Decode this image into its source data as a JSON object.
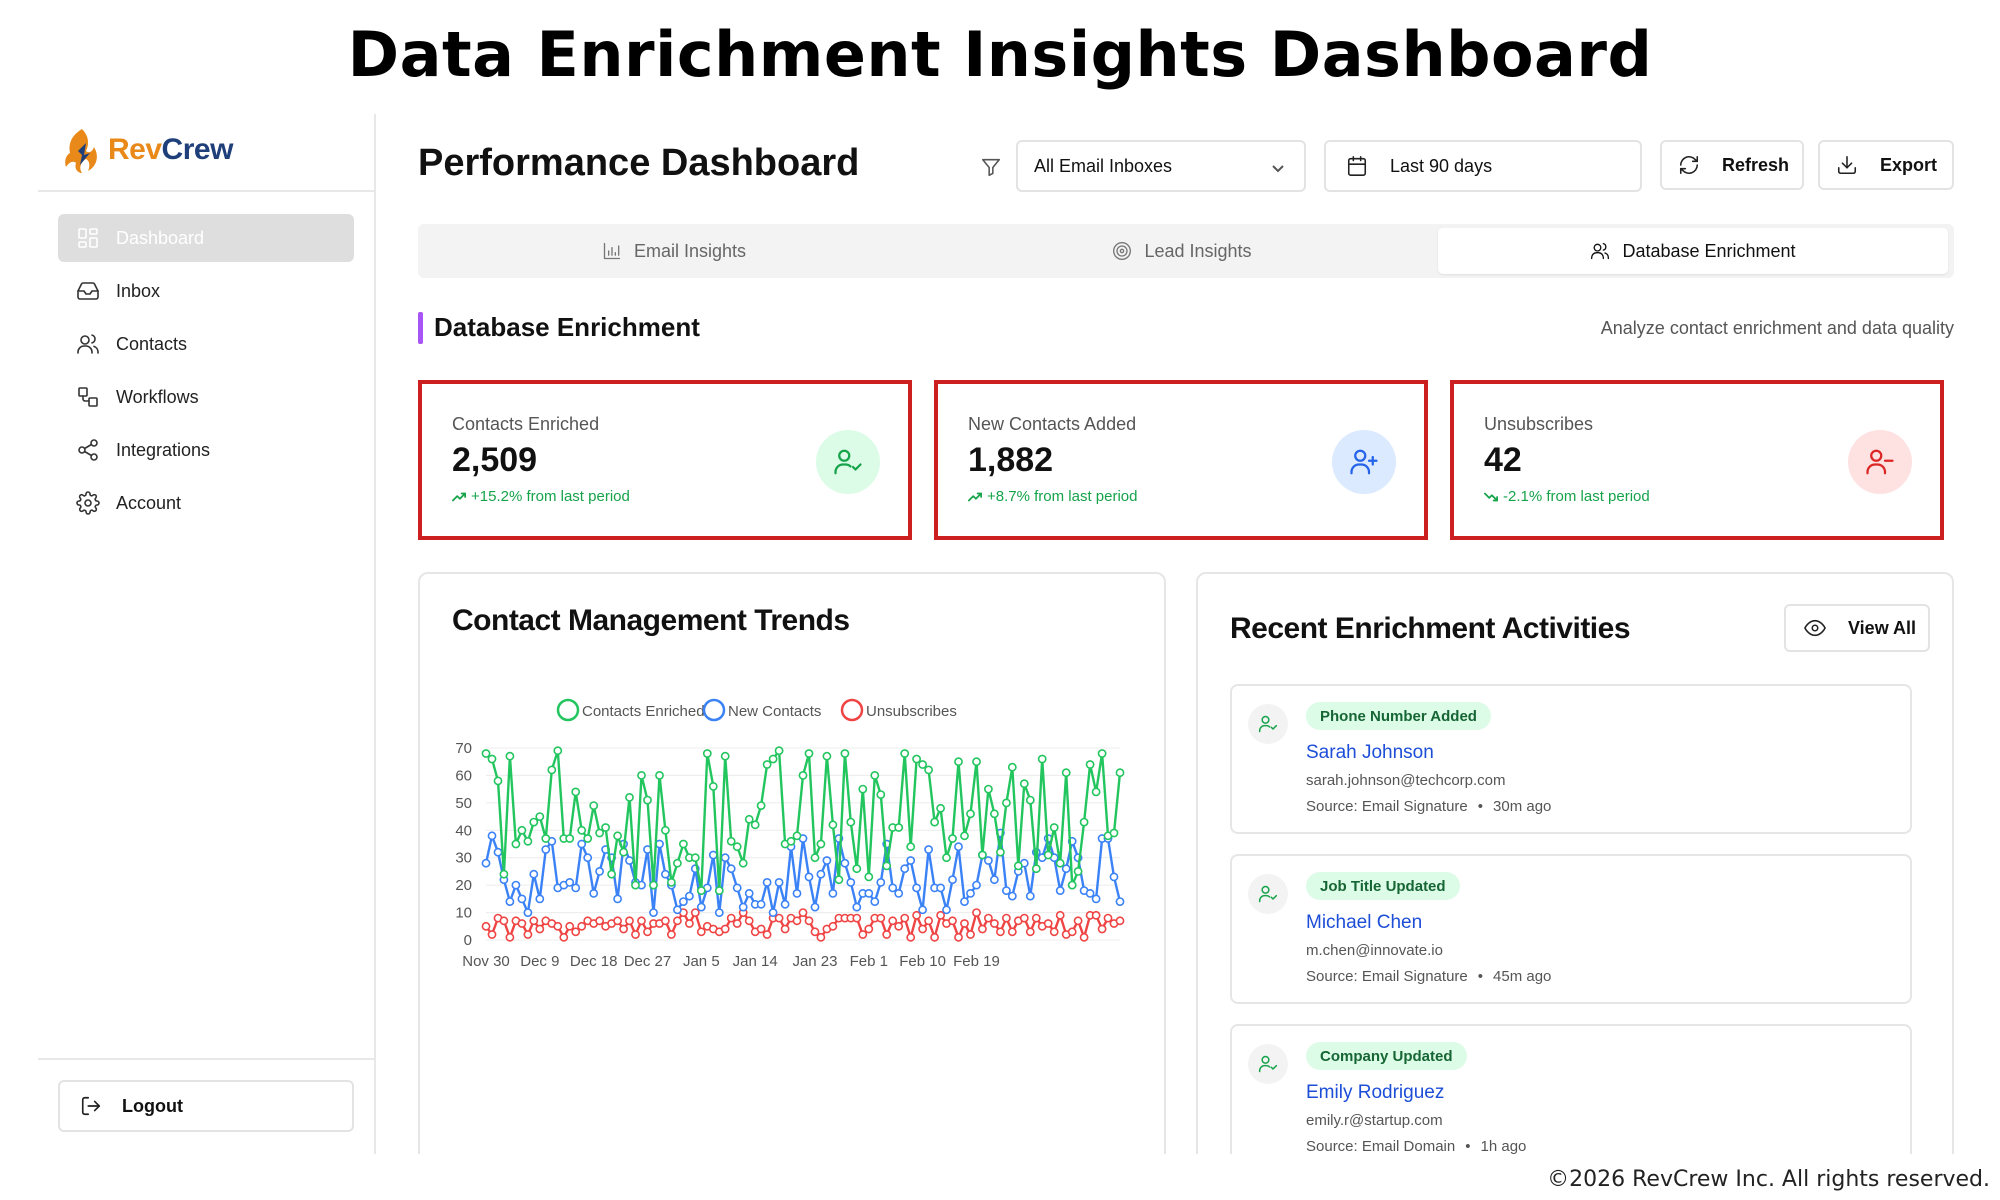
{
  "banner": {
    "title": "Data Enrichment Insights Dashboard",
    "copyright": "©2026 RevCrew Inc. All rights reserved."
  },
  "brand": {
    "name_part1": "Rev",
    "name_part2": "Crew",
    "color_orange": "#e8891a",
    "color_navy": "#1f3f7a"
  },
  "sidebar": {
    "items": [
      {
        "label": "Dashboard",
        "icon": "dashboard-icon",
        "active": true
      },
      {
        "label": "Inbox",
        "icon": "inbox-icon"
      },
      {
        "label": "Contacts",
        "icon": "contacts-icon"
      },
      {
        "label": "Workflows",
        "icon": "workflows-icon"
      },
      {
        "label": "Integrations",
        "icon": "share-icon"
      },
      {
        "label": "Account",
        "icon": "gear-icon"
      }
    ],
    "logout_label": "Logout"
  },
  "header": {
    "title": "Performance Dashboard",
    "inbox_select": "All Email Inboxes",
    "date_range": "Last 90 days",
    "refresh_label": "Refresh",
    "export_label": "Export"
  },
  "tabs": [
    {
      "label": "Email Insights",
      "icon": "bar-chart-icon"
    },
    {
      "label": "Lead Insights",
      "icon": "target-icon"
    },
    {
      "label": "Database Enrichment",
      "icon": "users-icon",
      "active": true
    }
  ],
  "section": {
    "title": "Database Enrichment",
    "description": "Analyze contact enrichment and data quality",
    "accent": "#a855f7"
  },
  "stats": [
    {
      "label": "Contacts Enriched",
      "value": "2,509",
      "trend": "+15.2% from last period",
      "icon": "user-check-icon",
      "bg": "#dcfce7",
      "color": "#16a34a"
    },
    {
      "label": "New Contacts Added",
      "value": "1,882",
      "trend": "+8.7% from last period",
      "icon": "user-plus-icon",
      "bg": "#dbeafe",
      "color": "#2563eb"
    },
    {
      "label": "Unsubscribes",
      "value": "42",
      "trend": "-2.1% from last period",
      "icon": "user-minus-icon",
      "bg": "#fee2e2",
      "color": "#dc2626"
    }
  ],
  "chart_card": {
    "title": "Contact Management Trends"
  },
  "chart_data": {
    "type": "line",
    "title": "Contact Management Trends",
    "ylim": [
      0,
      70
    ],
    "yticks": [
      0,
      10,
      20,
      30,
      40,
      50,
      60,
      70
    ],
    "xtick_labels": [
      "Nov 30",
      "Dec 9",
      "Dec 18",
      "Dec 27",
      "Jan 5",
      "Jan 14",
      "Jan 23",
      "Feb 1",
      "Feb 10",
      "Feb 19"
    ],
    "legend_position": "top",
    "grid": true,
    "series": [
      {
        "name": "Contacts Enriched",
        "color": "#22c55e",
        "values": [
          68,
          66,
          58,
          24,
          67,
          35,
          40,
          36,
          43,
          45,
          37,
          62,
          69,
          37,
          37,
          54,
          40,
          37,
          49,
          39,
          41,
          24,
          38,
          32,
          52,
          20,
          60,
          51,
          20,
          60,
          40,
          21,
          28,
          35,
          30,
          30,
          18,
          68,
          56,
          18,
          67,
          36,
          34,
          28,
          44,
          42,
          49,
          64,
          66,
          69,
          35,
          36,
          38,
          60,
          68,
          30,
          35,
          67,
          42,
          22,
          68,
          43,
          26,
          55,
          23,
          60,
          53,
          27,
          41,
          41,
          68,
          34,
          66,
          64,
          62,
          43,
          48,
          30,
          37,
          65,
          38,
          46,
          65,
          31,
          55,
          46,
          32,
          50,
          63,
          27,
          57,
          51,
          26,
          66,
          31,
          41,
          28,
          61,
          20,
          25,
          43,
          64,
          54,
          68,
          38,
          39,
          61
        ]
      },
      {
        "name": "New Contacts",
        "color": "#3b82f6",
        "values": [
          28,
          38,
          32,
          22,
          14,
          20,
          15,
          10,
          24,
          15,
          33,
          36,
          19,
          20,
          21,
          19,
          35,
          30,
          17,
          25,
          33,
          30,
          15,
          35,
          29,
          21,
          20,
          33,
          10,
          35,
          24,
          20,
          11,
          14,
          16,
          26,
          12,
          19,
          31,
          10,
          30,
          26,
          19,
          12,
          17,
          13,
          13,
          21,
          10,
          21,
          13,
          34,
          17,
          37,
          23,
          12,
          24,
          29,
          17,
          37,
          28,
          21,
          12,
          17,
          17,
          14,
          21,
          35,
          19,
          17,
          26,
          29,
          19,
          11,
          33,
          19,
          19,
          11,
          22,
          34,
          14,
          17,
          20,
          31,
          29,
          22,
          39,
          18,
          16,
          25,
          28,
          16,
          32,
          30,
          37,
          30,
          18,
          26,
          36,
          30,
          18,
          17,
          15,
          37,
          37,
          23,
          14
        ]
      },
      {
        "name": "Unsubscribes",
        "color": "#ef4444",
        "values": [
          5,
          2,
          8,
          7,
          1,
          7,
          6,
          2,
          7,
          4,
          7,
          6,
          5,
          1,
          5,
          3,
          5,
          7,
          6,
          7,
          5,
          6,
          7,
          4,
          7,
          2,
          7,
          3,
          6,
          6,
          7,
          2,
          7,
          10,
          6,
          10,
          3,
          5,
          4,
          3,
          4,
          8,
          6,
          10,
          7,
          3,
          4,
          2,
          8,
          8,
          4,
          8,
          7,
          10,
          7,
          3,
          1,
          4,
          5,
          8,
          8,
          8,
          8,
          2,
          4,
          8,
          8,
          2,
          7,
          5,
          8,
          1,
          9,
          4,
          7,
          1,
          9,
          6,
          7,
          1,
          6,
          2,
          10,
          4,
          8,
          6,
          3,
          8,
          3,
          7,
          8,
          3,
          8,
          5,
          6,
          3,
          9,
          2,
          3,
          7,
          1,
          9,
          9,
          4,
          8,
          6,
          7
        ]
      }
    ]
  },
  "activities_card": {
    "title": "Recent Enrichment Activities",
    "view_all_label": "View All",
    "items": [
      {
        "badge": "Phone Number Added",
        "name": "Sarah Johnson",
        "email": "sarah.johnson@techcorp.com",
        "source": "Source: Email Signature",
        "dot": "•",
        "time": "30m ago"
      },
      {
        "badge": "Job Title Updated",
        "name": "Michael Chen",
        "email": "m.chen@innovate.io",
        "source": "Source: Email Signature",
        "dot": "•",
        "time": "45m ago"
      },
      {
        "badge": "Company Updated",
        "name": "Emily Rodriguez",
        "email": "emily.r@startup.com",
        "source": "Source: Email Domain",
        "dot": "•",
        "time": "1h ago"
      }
    ]
  }
}
